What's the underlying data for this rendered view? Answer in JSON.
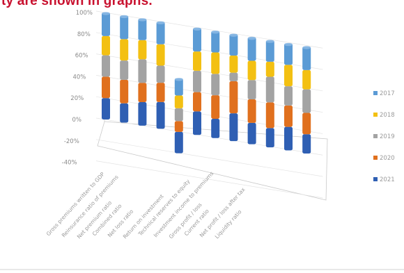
{
  "caption": "ty are  shown in graphs.",
  "chart_data": {
    "type": "bar",
    "stacked": true,
    "percent": true,
    "three_d": true,
    "yticks": [
      "100%",
      "80%",
      "60%",
      "40%",
      "20%",
      "0%",
      "-20%",
      "-40%"
    ],
    "ylim": [
      -40,
      100
    ],
    "grid": true,
    "legend_position": "right",
    "categories": [
      "Gross premiums written to GDP",
      "Reinsurance ratio of premiums",
      "Net premium ratio",
      "Combined ratio",
      "Net loss ratio",
      "Return on investment",
      "Technical reserves to equity",
      "Investment income to premiums",
      "Gross profit / loss",
      "Current ratio",
      "Net profit / loss after tax",
      "Liquidity ratio"
    ],
    "series": [
      {
        "name": "2021",
        "color": "#2f5fb3",
        "values": [
          20,
          18,
          22,
          25,
          -20,
          22,
          18,
          26,
          20,
          18,
          22,
          18
        ]
      },
      {
        "name": "2020",
        "color": "#e0701e",
        "values": [
          20,
          22,
          18,
          18,
          10,
          18,
          22,
          30,
          22,
          24,
          20,
          20
        ]
      },
      {
        "name": "2019",
        "color": "#a3a3a3",
        "values": [
          20,
          18,
          22,
          16,
          12,
          20,
          20,
          8,
          18,
          24,
          18,
          22
        ]
      },
      {
        "name": "2018",
        "color": "#f3c012",
        "values": [
          18,
          20,
          18,
          20,
          12,
          18,
          20,
          16,
          18,
          14,
          20,
          18
        ]
      },
      {
        "name": "2017",
        "color": "#5b9bd5",
        "values": [
          22,
          22,
          20,
          21,
          16,
          22,
          20,
          20,
          22,
          20,
          20,
          22
        ]
      }
    ]
  }
}
